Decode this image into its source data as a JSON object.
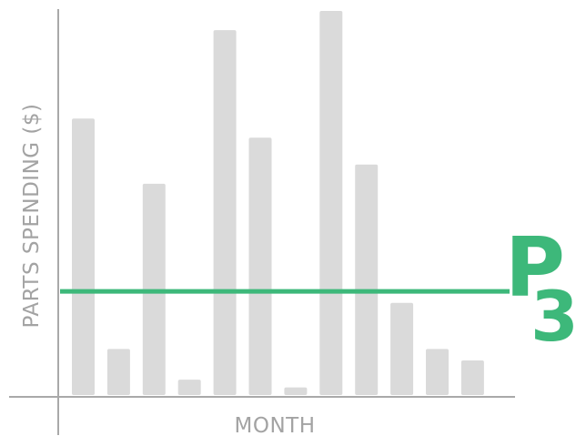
{
  "colors": {
    "bar": "#dadada",
    "axis": "#a9a9a9",
    "threshold": "#3db87a",
    "text": "#a3a3a3"
  },
  "logo": {
    "letter": "P",
    "number": "3"
  },
  "chart_data": {
    "type": "bar",
    "title": "",
    "xlabel": "MONTH",
    "ylabel": "PARTS SPENDING ($)",
    "values": [
      72,
      12,
      55,
      4,
      95,
      67,
      2,
      100,
      60,
      24,
      12,
      9
    ],
    "ylim": [
      0,
      100
    ],
    "threshold": {
      "value": 27,
      "color": "#3db87a"
    },
    "grid": false,
    "tick_labels_shown": false
  }
}
